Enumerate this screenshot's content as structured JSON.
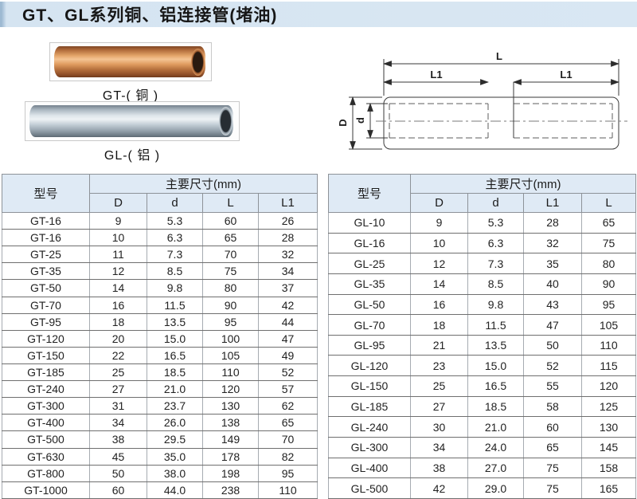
{
  "page": {
    "title": "GT、GL系列铜、铝连接管(堵油)"
  },
  "photos": {
    "copper_label": "GT-( 铜 )",
    "aluminum_label": "GL-( 铝 )"
  },
  "diagram": {
    "L": "L",
    "L1": "L1",
    "D": "D",
    "d": "d"
  },
  "tables": [
    {
      "name": "GT copper tubes",
      "model_header": "型号",
      "dims_header": "主要尺寸(mm)",
      "columns": [
        "D",
        "d",
        "L",
        "L1"
      ],
      "rows": [
        [
          "GT-16",
          "9",
          "5.3",
          "60",
          "26"
        ],
        [
          "GT-16",
          "10",
          "6.3",
          "65",
          "28"
        ],
        [
          "GT-25",
          "11",
          "7.3",
          "70",
          "32"
        ],
        [
          "GT-35",
          "12",
          "8.5",
          "75",
          "34"
        ],
        [
          "GT-50",
          "14",
          "9.8",
          "80",
          "37"
        ],
        [
          "GT-70",
          "16",
          "11.5",
          "90",
          "42"
        ],
        [
          "GT-95",
          "18",
          "13.5",
          "95",
          "44"
        ],
        [
          "GT-120",
          "20",
          "15.0",
          "100",
          "47"
        ],
        [
          "GT-150",
          "22",
          "16.5",
          "105",
          "49"
        ],
        [
          "GT-185",
          "25",
          "18.5",
          "110",
          "52"
        ],
        [
          "GT-240",
          "27",
          "21.0",
          "120",
          "57"
        ],
        [
          "GT-300",
          "31",
          "23.7",
          "130",
          "62"
        ],
        [
          "GT-400",
          "34",
          "26.0",
          "138",
          "65"
        ],
        [
          "GT-500",
          "38",
          "29.5",
          "149",
          "70"
        ],
        [
          "GT-630",
          "45",
          "35.0",
          "178",
          "82"
        ],
        [
          "GT-800",
          "50",
          "38.0",
          "198",
          "95"
        ],
        [
          "GT-1000",
          "60",
          "44.0",
          "238",
          "110"
        ]
      ]
    },
    {
      "name": "GL aluminum tubes",
      "model_header": "型号",
      "dims_header": "主要尺寸(mm)",
      "columns": [
        "D",
        "d",
        "L1",
        "L"
      ],
      "rows": [
        [
          "GL-10",
          "9",
          "5.3",
          "28",
          "65"
        ],
        [
          "GL-16",
          "10",
          "6.3",
          "32",
          "75"
        ],
        [
          "GL-25",
          "12",
          "7.3",
          "35",
          "80"
        ],
        [
          "GL-35",
          "14",
          "8.5",
          "40",
          "90"
        ],
        [
          "GL-50",
          "16",
          "9.8",
          "43",
          "95"
        ],
        [
          "GL-70",
          "18",
          "11.5",
          "47",
          "105"
        ],
        [
          "GL-95",
          "21",
          "13.5",
          "50",
          "110"
        ],
        [
          "GL-120",
          "23",
          "15.0",
          "52",
          "115"
        ],
        [
          "GL-150",
          "25",
          "16.5",
          "55",
          "120"
        ],
        [
          "GL-185",
          "27",
          "18.5",
          "58",
          "125"
        ],
        [
          "GL-240",
          "30",
          "21.0",
          "60",
          "130"
        ],
        [
          "GL-300",
          "34",
          "24.0",
          "65",
          "145"
        ],
        [
          "GL-400",
          "38",
          "27.0",
          "75",
          "158"
        ],
        [
          "GL-500",
          "42",
          "29.0",
          "75",
          "165"
        ]
      ]
    }
  ],
  "colors": {
    "title_bar": "#d7e5f2",
    "table_header_bg": "#dfeaf5",
    "copper": "#c97e4c",
    "aluminum": "#b6c1ca",
    "line": "#3a3a3a"
  }
}
